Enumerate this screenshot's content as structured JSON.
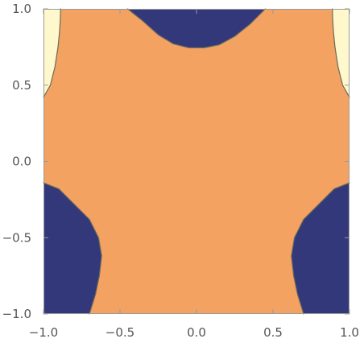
{
  "chart_data": {
    "type": "contour",
    "title": "",
    "xlabel": "",
    "ylabel": "",
    "xlim": [
      -1.0,
      1.0
    ],
    "ylim": [
      -1.0,
      1.0
    ],
    "xticks": [
      -1.0,
      -0.5,
      0.0,
      0.5,
      1.0
    ],
    "yticks": [
      -1.0,
      -0.5,
      0.0,
      0.5,
      1.0
    ],
    "x_tick_labels": [
      "−1.0",
      "−0.5",
      "0.0",
      "0.5",
      "1.0"
    ],
    "y_tick_labels": [
      "−1.0",
      "−0.5",
      "0.0",
      "0.5",
      "1.0"
    ],
    "grid": false,
    "legend": "none",
    "colors": {
      "background_region": "#f3a262",
      "low_region": "#33387a",
      "high_region": "#fff8cc",
      "contour_line": "#6b6b5a",
      "frame": "#9a9a9a",
      "tick_text": "#555555"
    },
    "regions": [
      {
        "level": "low",
        "boundary": [
          [
            -0.45,
            1.0
          ],
          [
            -0.35,
            0.92
          ],
          [
            -0.25,
            0.83
          ],
          [
            -0.15,
            0.77
          ],
          [
            -0.05,
            0.745
          ],
          [
            0.05,
            0.745
          ],
          [
            0.15,
            0.765
          ],
          [
            0.25,
            0.82
          ],
          [
            0.35,
            0.9
          ],
          [
            0.45,
            1.0
          ]
        ]
      },
      {
        "level": "high",
        "boundary": [
          [
            -1.0,
            0.42
          ],
          [
            -0.955,
            0.5
          ],
          [
            -0.925,
            0.62
          ],
          [
            -0.905,
            0.75
          ],
          [
            -0.895,
            0.85
          ],
          [
            -0.89,
            0.93
          ],
          [
            -0.888,
            1.0
          ]
        ]
      },
      {
        "level": "high",
        "boundary": [
          [
            0.888,
            1.0
          ],
          [
            0.89,
            0.93
          ],
          [
            0.895,
            0.85
          ],
          [
            0.905,
            0.75
          ],
          [
            0.925,
            0.62
          ],
          [
            0.955,
            0.5
          ],
          [
            1.0,
            0.42
          ]
        ]
      },
      {
        "level": "low",
        "boundary": [
          [
            -1.0,
            -0.14
          ],
          [
            -0.9,
            -0.18
          ],
          [
            -0.8,
            -0.28
          ],
          [
            -0.7,
            -0.38
          ],
          [
            -0.64,
            -0.5
          ],
          [
            -0.62,
            -0.62
          ],
          [
            -0.635,
            -0.75
          ],
          [
            -0.66,
            -0.87
          ],
          [
            -0.7,
            -1.0
          ]
        ]
      },
      {
        "level": "low",
        "boundary": [
          [
            0.7,
            -1.0
          ],
          [
            0.66,
            -0.87
          ],
          [
            0.635,
            -0.75
          ],
          [
            0.62,
            -0.62
          ],
          [
            0.64,
            -0.5
          ],
          [
            0.7,
            -0.38
          ],
          [
            0.8,
            -0.28
          ],
          [
            0.9,
            -0.18
          ],
          [
            1.0,
            -0.14
          ]
        ]
      }
    ]
  }
}
